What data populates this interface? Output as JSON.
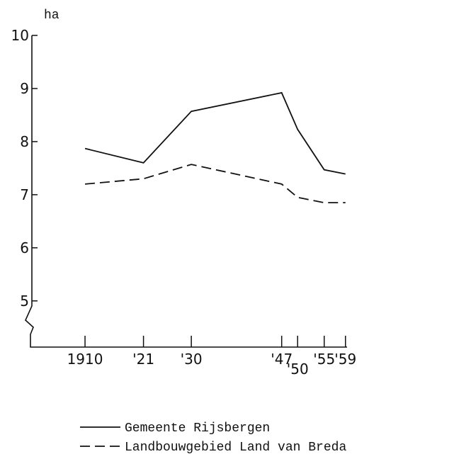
{
  "chart_data": {
    "type": "line",
    "y_label": "ha",
    "x": [
      1910,
      1921,
      1930,
      1947,
      1950,
      1955,
      1959
    ],
    "series": [
      {
        "name": "Gemeente Rijsbergen",
        "color": "#111111",
        "dash": "solid",
        "values": [
          7.87,
          7.6,
          8.57,
          8.92,
          8.23,
          7.47,
          7.39
        ]
      },
      {
        "name": "Landbouwgebied Land van Breda",
        "color": "#111111",
        "dash": "dashed",
        "values": [
          7.2,
          7.3,
          7.57,
          7.2,
          6.95,
          6.85,
          6.85
        ]
      }
    ],
    "xlim": [
      1900,
      1959.3
    ],
    "xticks": [
      1910,
      {
        "value": 1921,
        "label": "'21"
      },
      {
        "value": 1930,
        "label": "'30"
      },
      {
        "value": 1947,
        "label": "'47"
      },
      {
        "value": 1950,
        "label": "'50"
      },
      {
        "value": 1955,
        "label": "'55"
      },
      {
        "value": 1959,
        "label": "'59"
      }
    ],
    "ylim": [
      4.13,
      10
    ],
    "yticks": [
      5,
      6,
      7,
      8,
      9,
      10
    ],
    "axis_break": true
  }
}
